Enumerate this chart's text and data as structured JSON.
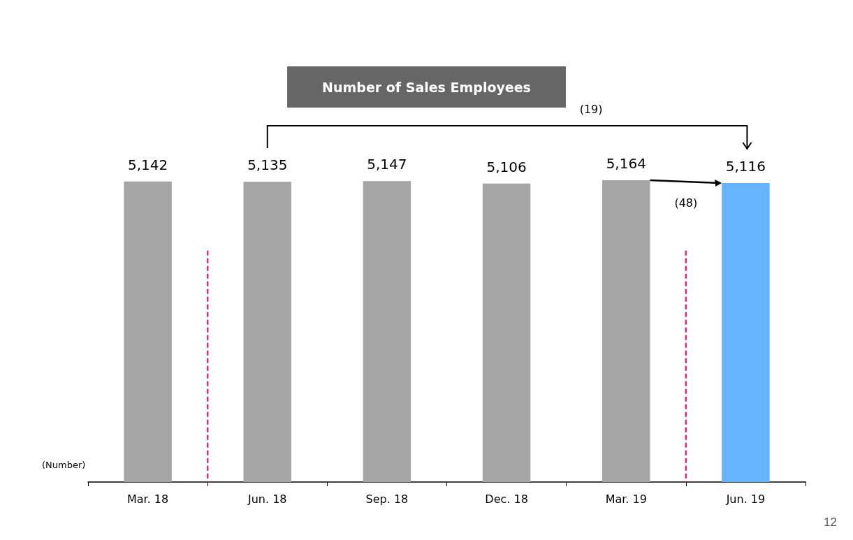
{
  "chart_data": {
    "type": "bar",
    "title": "Number of Sales Employees",
    "categories": [
      "Mar. 18",
      "Jun. 18",
      "Sep. 18",
      "Dec. 18",
      "Mar. 19",
      "Jun. 19"
    ],
    "values": [
      5142,
      5135,
      5147,
      5106,
      5164,
      5116
    ],
    "colors": [
      "#a5a5a5",
      "#a5a5a5",
      "#a5a5a5",
      "#a5a5a5",
      "#a5a5a5",
      "#66b3ff"
    ],
    "value_labels": [
      "5,142",
      "5,135",
      "5,147",
      "5,106",
      "5,164",
      "5,116"
    ],
    "annotations": [
      "(19)",
      "(48)",
      "(Number)",
      "12"
    ]
  }
}
